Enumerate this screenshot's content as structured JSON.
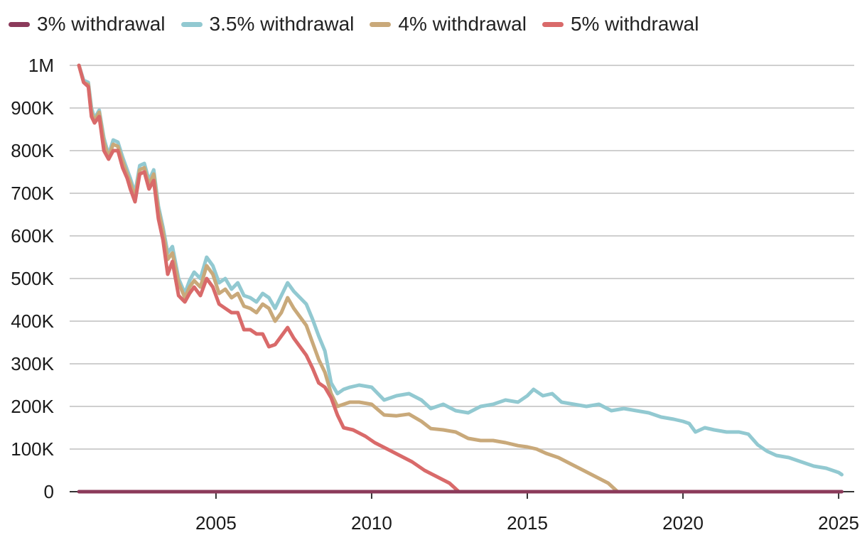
{
  "chart_data": {
    "type": "line",
    "title": "",
    "xlabel": "",
    "ylabel": "",
    "xlim": [
      2000.3,
      2025.5
    ],
    "ylim": [
      0,
      1000000
    ],
    "grid": "horizontal",
    "legend_position": "top-left",
    "x_ticks": [
      2005,
      2010,
      2015,
      2020,
      2025
    ],
    "x_tick_labels": [
      "2005",
      "2010",
      "2015",
      "2020",
      "2025"
    ],
    "y_ticks": [
      0,
      100000,
      200000,
      300000,
      400000,
      500000,
      600000,
      700000,
      800000,
      900000,
      1000000
    ],
    "y_tick_labels": [
      "0",
      "100K",
      "200K",
      "300K",
      "400K",
      "500K",
      "600K",
      "700K",
      "800K",
      "900K",
      "1M"
    ],
    "series": [
      {
        "name": "3% withdrawal",
        "color": "#8b3a5a",
        "x": [
          2000.6,
          2025.1
        ],
        "y": [
          0,
          0
        ]
      },
      {
        "name": "3.5% withdrawal",
        "color": "#92c9d1",
        "x": [
          2000.6,
          2000.75,
          2000.9,
          2001.0,
          2001.1,
          2001.25,
          2001.4,
          2001.55,
          2001.7,
          2001.85,
          2002.0,
          2002.15,
          2002.25,
          2002.4,
          2002.55,
          2002.7,
          2002.85,
          2003.0,
          2003.15,
          2003.3,
          2003.45,
          2003.6,
          2003.8,
          2004.0,
          2004.15,
          2004.3,
          2004.5,
          2004.7,
          2004.9,
          2005.1,
          2005.3,
          2005.5,
          2005.7,
          2005.9,
          2006.1,
          2006.3,
          2006.5,
          2006.7,
          2006.9,
          2007.1,
          2007.3,
          2007.5,
          2007.7,
          2007.9,
          2008.1,
          2008.3,
          2008.5,
          2008.7,
          2008.9,
          2009.1,
          2009.3,
          2009.6,
          2010.0,
          2010.4,
          2010.8,
          2011.2,
          2011.6,
          2011.9,
          2012.3,
          2012.7,
          2013.1,
          2013.5,
          2013.9,
          2014.3,
          2014.7,
          2015.0,
          2015.2,
          2015.5,
          2015.8,
          2016.1,
          2016.5,
          2016.9,
          2017.3,
          2017.7,
          2018.1,
          2018.5,
          2018.9,
          2019.3,
          2019.7,
          2020.0,
          2020.2,
          2020.4,
          2020.7,
          2021.0,
          2021.4,
          2021.8,
          2022.1,
          2022.4,
          2022.7,
          2023.0,
          2023.4,
          2023.8,
          2024.2,
          2024.6,
          2025.0,
          2025.1
        ],
        "y": [
          1000000,
          965000,
          960000,
          900000,
          875000,
          895000,
          830000,
          790000,
          825000,
          820000,
          785000,
          755000,
          735000,
          700000,
          765000,
          770000,
          730000,
          755000,
          670000,
          620000,
          560000,
          575000,
          500000,
          465000,
          495000,
          515000,
          500000,
          550000,
          530000,
          490000,
          500000,
          475000,
          490000,
          460000,
          455000,
          445000,
          465000,
          455000,
          430000,
          460000,
          490000,
          470000,
          455000,
          440000,
          405000,
          365000,
          330000,
          255000,
          230000,
          240000,
          245000,
          250000,
          245000,
          215000,
          225000,
          230000,
          215000,
          195000,
          205000,
          190000,
          185000,
          200000,
          205000,
          215000,
          210000,
          225000,
          240000,
          225000,
          230000,
          210000,
          205000,
          200000,
          205000,
          190000,
          195000,
          190000,
          185000,
          175000,
          170000,
          165000,
          160000,
          140000,
          150000,
          145000,
          140000,
          140000,
          135000,
          110000,
          95000,
          85000,
          80000,
          70000,
          60000,
          55000,
          45000,
          40000
        ]
      },
      {
        "name": "4% withdrawal",
        "color": "#c9a97a",
        "x": [
          2000.6,
          2000.75,
          2000.9,
          2001.0,
          2001.1,
          2001.25,
          2001.4,
          2001.55,
          2001.7,
          2001.85,
          2002.0,
          2002.15,
          2002.25,
          2002.4,
          2002.55,
          2002.7,
          2002.85,
          2003.0,
          2003.15,
          2003.3,
          2003.45,
          2003.6,
          2003.8,
          2004.0,
          2004.15,
          2004.3,
          2004.5,
          2004.7,
          2004.9,
          2005.1,
          2005.3,
          2005.5,
          2005.7,
          2005.9,
          2006.1,
          2006.3,
          2006.5,
          2006.7,
          2006.9,
          2007.1,
          2007.3,
          2007.5,
          2007.7,
          2007.9,
          2008.1,
          2008.3,
          2008.5,
          2008.7,
          2008.9,
          2009.1,
          2009.3,
          2009.6,
          2010.0,
          2010.4,
          2010.8,
          2011.2,
          2011.6,
          2011.9,
          2012.3,
          2012.7,
          2013.1,
          2013.5,
          2013.9,
          2014.3,
          2014.7,
          2015.0,
          2015.3,
          2015.6,
          2016.0,
          2016.4,
          2016.8,
          2017.2,
          2017.6,
          2017.9
        ],
        "y": [
          1000000,
          960000,
          955000,
          890000,
          870000,
          890000,
          820000,
          785000,
          815000,
          810000,
          775000,
          745000,
          725000,
          690000,
          755000,
          760000,
          720000,
          745000,
          660000,
          610000,
          545000,
          560000,
          490000,
          455000,
          480000,
          495000,
          480000,
          530000,
          510000,
          465000,
          475000,
          455000,
          465000,
          435000,
          430000,
          420000,
          440000,
          430000,
          400000,
          420000,
          455000,
          430000,
          410000,
          390000,
          350000,
          310000,
          280000,
          230000,
          200000,
          205000,
          210000,
          210000,
          205000,
          180000,
          178000,
          182000,
          165000,
          148000,
          145000,
          140000,
          125000,
          120000,
          120000,
          115000,
          108000,
          105000,
          100000,
          90000,
          80000,
          65000,
          50000,
          35000,
          20000,
          0
        ]
      },
      {
        "name": "5% withdrawal",
        "color": "#d96a6a",
        "x": [
          2000.6,
          2000.75,
          2000.9,
          2001.0,
          2001.1,
          2001.25,
          2001.4,
          2001.55,
          2001.7,
          2001.85,
          2002.0,
          2002.15,
          2002.25,
          2002.4,
          2002.55,
          2002.7,
          2002.85,
          2003.0,
          2003.15,
          2003.3,
          2003.45,
          2003.6,
          2003.8,
          2004.0,
          2004.15,
          2004.3,
          2004.5,
          2004.7,
          2004.9,
          2005.1,
          2005.3,
          2005.5,
          2005.7,
          2005.9,
          2006.1,
          2006.3,
          2006.5,
          2006.7,
          2006.9,
          2007.1,
          2007.3,
          2007.5,
          2007.7,
          2007.9,
          2008.1,
          2008.3,
          2008.5,
          2008.7,
          2008.9,
          2009.1,
          2009.4,
          2009.8,
          2010.1,
          2010.5,
          2010.9,
          2011.3,
          2011.7,
          2012.1,
          2012.5,
          2012.8
        ],
        "y": [
          1000000,
          960000,
          950000,
          880000,
          865000,
          880000,
          800000,
          780000,
          800000,
          800000,
          760000,
          735000,
          710000,
          680000,
          745000,
          750000,
          710000,
          730000,
          640000,
          590000,
          510000,
          540000,
          460000,
          445000,
          465000,
          480000,
          460000,
          500000,
          480000,
          440000,
          430000,
          420000,
          420000,
          380000,
          380000,
          370000,
          370000,
          340000,
          345000,
          365000,
          385000,
          360000,
          340000,
          320000,
          290000,
          255000,
          245000,
          220000,
          180000,
          150000,
          145000,
          130000,
          115000,
          100000,
          85000,
          70000,
          50000,
          35000,
          20000,
          0
        ]
      }
    ]
  }
}
